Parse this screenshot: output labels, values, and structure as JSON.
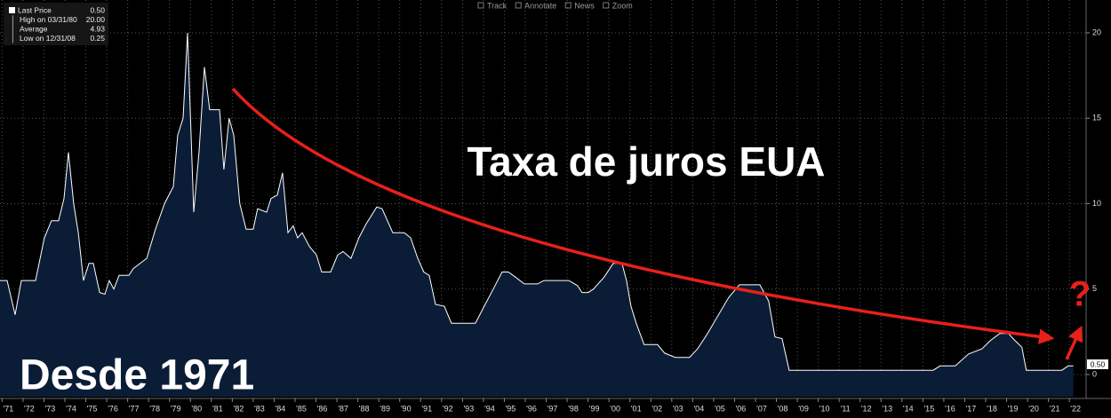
{
  "chart_data": {
    "type": "area",
    "title": "Taxa de juros EUA",
    "annotations": [
      "Desde 1971",
      "?"
    ],
    "toolbar": [
      "Track",
      "Annotate",
      "News",
      "Zoom"
    ],
    "legend": [
      {
        "label": "Last Price",
        "value": "0.50"
      },
      {
        "label": "High on 03/31/80",
        "value": "20.00"
      },
      {
        "label": "Average",
        "value": "4.93"
      },
      {
        "label": "Low on 12/31/08",
        "value": "0.25"
      }
    ],
    "last_label": "0.50",
    "grid": true,
    "series": [
      {
        "color": "#ffffff",
        "fill": "#0b1d36",
        "x": [
          1970.9,
          1971.24,
          1971.62,
          1971.92,
          1972.6,
          1973.02,
          1973.36,
          1973.7,
          1973.96,
          1974.17,
          1974.42,
          1974.64,
          1974.89,
          1975.15,
          1975.36,
          1975.66,
          1975.91,
          1976.12,
          1976.34,
          1976.59,
          1977.06,
          1977.27,
          1977.91,
          1978.33,
          1978.76,
          1979.18,
          1979.39,
          1979.65,
          1979.86,
          1980.16,
          1980.41,
          1980.67,
          1980.92,
          1981.39,
          1981.6,
          1981.85,
          1982.07,
          1982.36,
          1982.66,
          1983.0,
          1983.21,
          1983.64,
          1983.85,
          1984.15,
          1984.4,
          1984.66,
          1984.91,
          1985.12,
          1985.34,
          1985.68,
          1986.02,
          1986.27,
          1986.7,
          1987.04,
          1987.29,
          1987.67,
          1988.05,
          1988.39,
          1988.9,
          1989.16,
          1989.67,
          1990.22,
          1990.52,
          1990.86,
          1991.15,
          1991.41,
          1991.71,
          1992.13,
          1992.47,
          1993.62,
          1994.04,
          1994.47,
          1994.89,
          1995.19,
          1995.53,
          1995.95,
          1996.59,
          1996.89,
          1998.08,
          1998.5,
          1998.71,
          1999.01,
          1999.26,
          1999.77,
          2000.2,
          2000.62,
          2000.84,
          2001.05,
          2001.3,
          2001.68,
          2002.32,
          2002.66,
          2003.17,
          2003.85,
          2004.23,
          2004.66,
          2005.72,
          2006.23,
          2007.21,
          2007.63,
          2007.93,
          2008.27,
          2008.61,
          2015.49,
          2015.82,
          2016.55,
          2017.18,
          2017.82,
          2018.24,
          2018.67,
          2019.09,
          2019.39,
          2019.73,
          2019.94,
          2021.64,
          2021.94,
          2022.19
        ],
        "values": [
          5.5,
          5.5,
          3.5,
          5.5,
          5.5,
          8,
          9,
          9,
          10.3,
          13,
          10,
          8.3,
          5.5,
          6.5,
          6.5,
          4.8,
          4.7,
          5.5,
          5,
          5.8,
          5.8,
          6.2,
          6.8,
          8.5,
          10,
          11,
          14,
          15,
          20,
          9.5,
          13,
          18,
          15.5,
          15.5,
          12,
          15,
          14,
          10,
          8.5,
          8.5,
          9.7,
          9.5,
          10.3,
          10.5,
          11.8,
          8.3,
          8.7,
          8,
          8.3,
          7.5,
          7,
          6,
          6,
          7,
          7.2,
          6.8,
          8,
          8.8,
          9.8,
          9.7,
          8.3,
          8.3,
          8,
          6.8,
          6,
          5.8,
          4.1,
          4,
          3,
          3,
          4,
          5,
          6,
          6,
          5.7,
          5.3,
          5.3,
          5.5,
          5.5,
          5.2,
          4.8,
          4.8,
          5,
          5.7,
          6.5,
          6.5,
          5.5,
          4,
          3,
          1.75,
          1.75,
          1.25,
          1,
          1,
          1.5,
          2.3,
          4.5,
          5.25,
          5.25,
          4.3,
          2.2,
          2.1,
          0.25,
          0.25,
          0.5,
          0.5,
          1.2,
          1.5,
          2,
          2.4,
          2.4,
          2,
          1.6,
          0.25,
          0.25,
          0.5,
          0.5
        ]
      }
    ],
    "xlim": [
      1970.9,
      2022.8
    ],
    "xticks": [
      {
        "value": 1971,
        "label": "'71"
      },
      {
        "value": 1972,
        "label": "'72"
      },
      {
        "value": 1973,
        "label": "'73"
      },
      {
        "value": 1974,
        "label": "'74"
      },
      {
        "value": 1975,
        "label": "'75"
      },
      {
        "value": 1976,
        "label": "'76"
      },
      {
        "value": 1977,
        "label": "'77"
      },
      {
        "value": 1978,
        "label": "'78"
      },
      {
        "value": 1979,
        "label": "'79"
      },
      {
        "value": 1980,
        "label": "'80"
      },
      {
        "value": 1981,
        "label": "'81"
      },
      {
        "value": 1982,
        "label": "'82"
      },
      {
        "value": 1983,
        "label": "'83"
      },
      {
        "value": 1984,
        "label": "'84"
      },
      {
        "value": 1985,
        "label": "'85"
      },
      {
        "value": 1986,
        "label": "'86"
      },
      {
        "value": 1987,
        "label": "'87"
      },
      {
        "value": 1988,
        "label": "'88"
      },
      {
        "value": 1989,
        "label": "'89"
      },
      {
        "value": 1990,
        "label": "'90"
      },
      {
        "value": 1991,
        "label": "'91"
      },
      {
        "value": 1992,
        "label": "'92"
      },
      {
        "value": 1993,
        "label": "'93"
      },
      {
        "value": 1994,
        "label": "'94"
      },
      {
        "value": 1995,
        "label": "'95"
      },
      {
        "value": 1996,
        "label": "'96"
      },
      {
        "value": 1997,
        "label": "'97"
      },
      {
        "value": 1998,
        "label": "'98"
      },
      {
        "value": 1999,
        "label": "'99"
      },
      {
        "value": 2000,
        "label": "'00"
      },
      {
        "value": 2001,
        "label": "'01"
      },
      {
        "value": 2002,
        "label": "'02"
      },
      {
        "value": 2003,
        "label": "'03"
      },
      {
        "value": 2004,
        "label": "'04"
      },
      {
        "value": 2005,
        "label": "'05"
      },
      {
        "value": 2006,
        "label": "'06"
      },
      {
        "value": 2007,
        "label": "'07"
      },
      {
        "value": 2008,
        "label": "'08"
      },
      {
        "value": 2009,
        "label": "'09"
      },
      {
        "value": 2010,
        "label": "'10"
      },
      {
        "value": 2011,
        "label": "'11"
      },
      {
        "value": 2012,
        "label": "'12"
      },
      {
        "value": 2013,
        "label": "'13"
      },
      {
        "value": 2014,
        "label": "'14"
      },
      {
        "value": 2015,
        "label": "'15"
      },
      {
        "value": 2016,
        "label": "'16"
      },
      {
        "value": 2017,
        "label": "'17"
      },
      {
        "value": 2018,
        "label": "'18"
      },
      {
        "value": 2019,
        "label": "'19"
      },
      {
        "value": 2020,
        "label": "'20"
      },
      {
        "value": 2021,
        "label": "'21"
      },
      {
        "value": 2022,
        "label": "'22"
      }
    ],
    "ylim": [
      -1.3,
      21.92
    ],
    "yticks": [
      0,
      5,
      10,
      15,
      20
    ]
  }
}
